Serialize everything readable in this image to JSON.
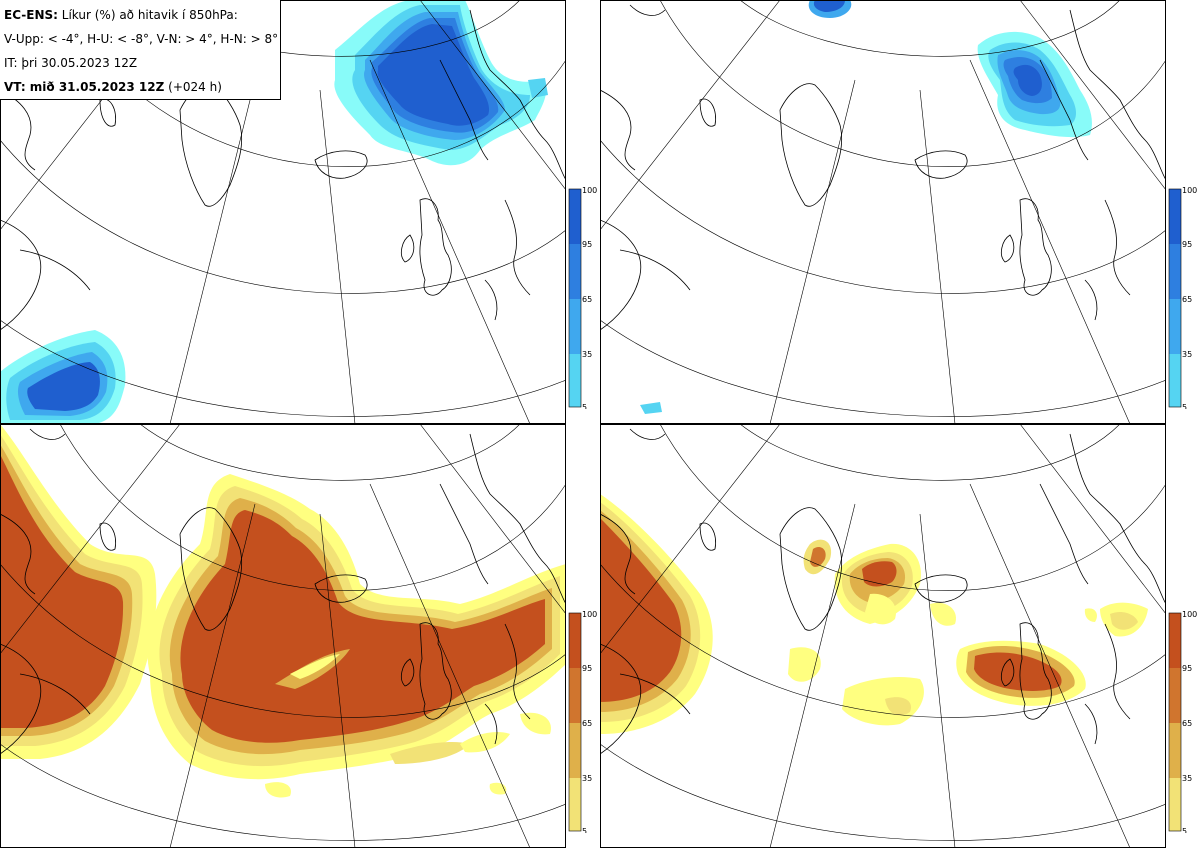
{
  "info": {
    "model_label": "EC-ENS:",
    "title_rest": "Líkur (%) að hitavik í 850hPa:",
    "legend_line": "V-Upp: < -4°, H-U: < -8°, V-N: > 4°, H-N: > 8°",
    "init_time": "IT: þri 30.05.2023 12Z",
    "valid_label": "VT: mið 31.05.2023 12Z",
    "valid_lead": "(+024 h)"
  },
  "panels": [
    {
      "id": "top-left",
      "variable": "V-Upp",
      "threshold": "< -4°",
      "palette": "blue"
    },
    {
      "id": "top-right",
      "variable": "H-U",
      "threshold": "< -8°",
      "palette": "blue"
    },
    {
      "id": "bottom-left",
      "variable": "V-N",
      "threshold": "> 4°",
      "palette": "orange"
    },
    {
      "id": "bottom-right",
      "variable": "H-N",
      "threshold": "> 8°",
      "palette": "orange"
    }
  ],
  "colorbars": {
    "blue": {
      "ticks": [
        "100",
        "95",
        "65",
        "35",
        "5"
      ],
      "colors": [
        "#1f5fcf",
        "#2e7fe0",
        "#3fa8ee",
        "#55d4f2",
        "#88fbf9"
      ]
    },
    "orange": {
      "ticks": [
        "100",
        "95",
        "65",
        "35",
        "5"
      ],
      "colors": [
        "#c4501e",
        "#d0752e",
        "#dfb04a",
        "#f2e276",
        "#ffff80"
      ]
    }
  },
  "map": {
    "coast_color": "#000000",
    "grid_color": "#000000"
  }
}
